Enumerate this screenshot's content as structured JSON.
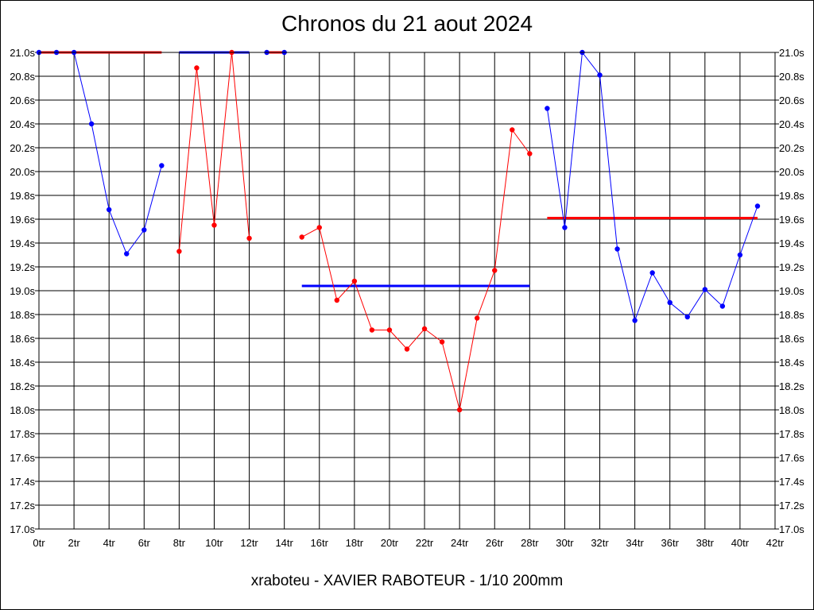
{
  "chart_data": {
    "type": "line",
    "title": "Chronos du 21 aout 2024",
    "footer": "xraboteu - XAVIER RABOTEUR - 1/10 200mm",
    "xlim": [
      0,
      42
    ],
    "ylim": [
      17.0,
      21.0
    ],
    "x_ticks": [
      "0tr",
      "2tr",
      "4tr",
      "6tr",
      "8tr",
      "10tr",
      "12tr",
      "14tr",
      "16tr",
      "18tr",
      "20tr",
      "22tr",
      "24tr",
      "26tr",
      "28tr",
      "30tr",
      "32tr",
      "34tr",
      "36tr",
      "38tr",
      "40tr",
      "42tr"
    ],
    "y_ticks": [
      "17.0s",
      "17.2s",
      "17.4s",
      "17.6s",
      "17.8s",
      "18.0s",
      "18.2s",
      "18.4s",
      "18.6s",
      "18.8s",
      "19.0s",
      "19.2s",
      "19.4s",
      "19.6s",
      "19.8s",
      "20.0s",
      "20.2s",
      "20.4s",
      "20.6s",
      "20.8s",
      "21.0s"
    ],
    "grid": true,
    "segments": [
      {
        "color": "#0000ff",
        "x": [
          0,
          1,
          2,
          3,
          4,
          5,
          6,
          7
        ],
        "y": [
          21.0,
          21.0,
          21.0,
          20.4,
          19.68,
          19.31,
          19.51,
          20.05
        ],
        "avg": 21.0,
        "avg_color": "#ff0000",
        "avg_x": [
          0,
          7
        ]
      },
      {
        "color": "#ff0000",
        "x": [
          8,
          9,
          10,
          11,
          12
        ],
        "y": [
          19.33,
          20.87,
          19.55,
          21.0,
          19.44
        ],
        "avg": 21.0,
        "avg_color": "#0000ff",
        "avg_x": [
          8,
          12
        ]
      },
      {
        "color": "#0000ff",
        "x": [
          13,
          14
        ],
        "y": [
          21.0,
          21.0
        ],
        "avg": 21.0,
        "avg_color": "#ff0000",
        "avg_x": [
          13,
          14
        ]
      },
      {
        "color": "#ff0000",
        "x": [
          15,
          16,
          17,
          18,
          19,
          20,
          21,
          22,
          23,
          24,
          25,
          26,
          27,
          28
        ],
        "y": [
          19.45,
          19.53,
          18.92,
          19.08,
          18.67,
          18.67,
          18.51,
          18.68,
          18.57,
          18.0,
          18.77,
          19.17,
          20.35,
          20.15
        ],
        "avg": 19.04,
        "avg_color": "#0000ff",
        "avg_x": [
          15,
          28
        ]
      },
      {
        "color": "#0000ff",
        "x": [
          29,
          30,
          31,
          32,
          33,
          34,
          35,
          36,
          37,
          38,
          39,
          40,
          41
        ],
        "y": [
          20.53,
          19.53,
          21.0,
          20.81,
          19.35,
          18.75,
          19.15,
          18.9,
          18.78,
          19.01,
          18.87,
          19.3,
          19.71
        ],
        "avg": 19.61,
        "avg_color": "#ff0000",
        "avg_x": [
          29,
          41
        ]
      }
    ]
  }
}
